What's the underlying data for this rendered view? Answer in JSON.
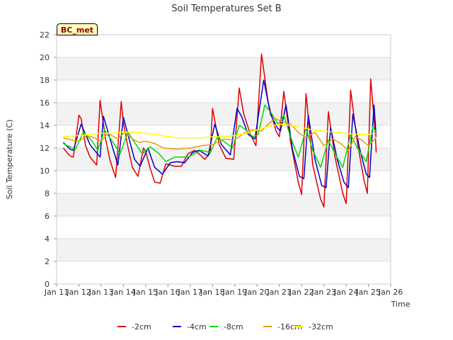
{
  "chart_data": {
    "type": "line",
    "title": "Soil Temperatures Set B",
    "xlabel": "Time",
    "ylabel": "Soil Temperature (C)",
    "ylim": [
      0,
      22
    ],
    "yticks": [
      0,
      2,
      4,
      6,
      8,
      10,
      12,
      14,
      16,
      18,
      20,
      22
    ],
    "xlim": [
      11,
      26
    ],
    "xticks": [
      11,
      12,
      13,
      14,
      15,
      16,
      17,
      18,
      19,
      20,
      21,
      22,
      23,
      24,
      25,
      26
    ],
    "xtick_labels": [
      "Jan 11",
      "Jan 12",
      "Jan 13",
      "Jan 14",
      "Jan 15",
      "Jan 16",
      "Jan 17",
      "Jan 18",
      "Jan 19",
      "Jan 20",
      "Jan 21",
      "Jan 22",
      "Jan 23",
      "Jan 24",
      "Jan 25",
      "Jan 26"
    ],
    "grid_bands": true,
    "legend_position": "bottom-center",
    "annotation": "BC_met",
    "series": [
      {
        "name": "-2cm",
        "color": "#dd0000",
        "x": [
          11.3,
          11.6,
          11.75,
          12.0,
          12.1,
          12.3,
          12.5,
          12.8,
          12.95,
          13.2,
          13.4,
          13.65,
          13.9,
          14.0,
          14.2,
          14.4,
          14.65,
          14.9,
          15.0,
          15.2,
          15.4,
          15.65,
          15.9,
          16.1,
          16.3,
          16.6,
          16.9,
          17.2,
          17.5,
          17.65,
          17.9,
          18.0,
          18.3,
          18.6,
          18.95,
          19.2,
          19.4,
          19.7,
          19.95,
          20.2,
          20.5,
          20.85,
          21.0,
          21.2,
          21.5,
          21.85,
          22.0,
          22.2,
          22.5,
          22.85,
          23.0,
          23.2,
          23.5,
          23.85,
          24.0,
          24.2,
          24.5,
          24.8,
          24.95,
          25.1,
          25.3,
          25.35
        ],
        "values": [
          12.0,
          11.3,
          11.2,
          14.9,
          14.6,
          12.2,
          11.2,
          10.5,
          16.2,
          12.8,
          10.9,
          9.4,
          16.1,
          14.2,
          12.1,
          10.3,
          9.5,
          12.0,
          11.7,
          10.2,
          9.0,
          8.9,
          10.6,
          10.5,
          10.4,
          10.4,
          11.5,
          11.8,
          11.3,
          11.0,
          11.6,
          15.5,
          12.3,
          11.1,
          11.0,
          17.3,
          15.0,
          13.2,
          12.2,
          20.3,
          16.0,
          13.5,
          13.0,
          17.0,
          12.6,
          9.0,
          7.9,
          16.8,
          10.5,
          7.5,
          6.8,
          15.2,
          11.2,
          8.0,
          7.1,
          17.1,
          12.5,
          9.2,
          8.0,
          18.1,
          13.5,
          11.6
        ]
      },
      {
        "name": "-4cm",
        "color": "#0000cc",
        "x": [
          11.3,
          11.6,
          11.75,
          12.1,
          12.5,
          12.95,
          13.1,
          13.4,
          13.75,
          14.0,
          14.2,
          14.5,
          14.75,
          15.1,
          15.4,
          15.75,
          16.1,
          16.4,
          16.75,
          17.1,
          17.4,
          17.8,
          18.1,
          18.4,
          18.8,
          19.1,
          19.3,
          19.6,
          19.9,
          20.3,
          20.6,
          20.9,
          21.05,
          21.3,
          21.6,
          21.9,
          22.1,
          22.3,
          22.6,
          22.9,
          23.1,
          23.3,
          23.6,
          23.9,
          24.1,
          24.3,
          24.6,
          24.9,
          25.05,
          25.25,
          25.35
        ],
        "values": [
          12.5,
          11.9,
          11.8,
          14.1,
          12.3,
          11.2,
          14.8,
          12.8,
          10.5,
          14.7,
          13.2,
          11.0,
          10.4,
          12.0,
          10.3,
          9.7,
          10.7,
          10.8,
          10.7,
          11.6,
          11.8,
          11.3,
          14.1,
          12.3,
          11.4,
          15.5,
          14.8,
          13.2,
          12.8,
          18.0,
          15.0,
          13.8,
          13.5,
          15.8,
          11.8,
          9.5,
          9.3,
          14.9,
          11.0,
          8.7,
          8.5,
          13.8,
          11.0,
          9.0,
          8.5,
          15.0,
          12.0,
          9.7,
          9.4,
          15.8,
          13.0
        ]
      },
      {
        "name": "-8cm",
        "color": "#00dd00",
        "x": [
          11.3,
          11.6,
          11.85,
          12.2,
          12.6,
          12.85,
          13.15,
          13.5,
          13.85,
          14.2,
          14.6,
          14.85,
          15.2,
          15.6,
          15.9,
          16.3,
          16.9,
          17.5,
          17.9,
          18.2,
          18.5,
          18.9,
          19.2,
          19.5,
          19.8,
          20.05,
          20.35,
          20.6,
          20.95,
          21.2,
          21.5,
          21.85,
          22.2,
          22.5,
          22.85,
          23.2,
          23.5,
          23.85,
          24.2,
          24.5,
          24.9,
          25.2,
          25.35
        ],
        "values": [
          12.4,
          12.1,
          11.9,
          13.4,
          12.6,
          11.8,
          13.6,
          12.6,
          11.5,
          13.4,
          12.2,
          11.5,
          12.1,
          11.5,
          10.8,
          11.2,
          11.2,
          11.8,
          11.6,
          12.9,
          12.6,
          12.0,
          14.0,
          13.6,
          13.0,
          13.2,
          15.8,
          15.2,
          14.1,
          14.9,
          13.0,
          11.2,
          13.7,
          11.8,
          10.3,
          12.7,
          11.5,
          10.3,
          13.2,
          12.0,
          10.8,
          13.9,
          13.4
        ]
      },
      {
        "name": "-16cm",
        "color": "#ee9900",
        "x": [
          11.3,
          11.7,
          12.0,
          12.35,
          12.7,
          13.0,
          13.3,
          13.75,
          14.05,
          14.4,
          14.7,
          15.0,
          15.4,
          15.8,
          16.4,
          17.0,
          17.5,
          18.0,
          18.5,
          19.0,
          19.4,
          19.8,
          20.2,
          20.5,
          20.8,
          21.2,
          21.5,
          21.9,
          22.2,
          22.6,
          23.0,
          23.4,
          23.75,
          24.1,
          24.4,
          24.7,
          25.0,
          25.3,
          25.35
        ],
        "values": [
          12.9,
          12.7,
          12.6,
          13.1,
          12.9,
          12.6,
          13.3,
          12.8,
          13.4,
          12.8,
          12.5,
          12.6,
          12.4,
          12.0,
          11.9,
          12.0,
          12.2,
          12.3,
          12.8,
          12.7,
          13.3,
          13.6,
          13.5,
          14.1,
          14.6,
          14.3,
          14.1,
          13.3,
          12.9,
          13.4,
          12.2,
          12.8,
          12.4,
          11.8,
          13.0,
          12.7,
          12.2,
          12.8,
          13.2
        ]
      },
      {
        "name": "-32cm",
        "color": "#ffff00",
        "x": [
          11.3,
          12.0,
          12.5,
          13.0,
          13.5,
          14.0,
          14.5,
          15.0,
          15.5,
          16.0,
          16.5,
          17.0,
          17.5,
          18.0,
          18.5,
          19.0,
          19.5,
          20.0,
          20.5,
          21.0,
          21.5,
          22.0,
          22.5,
          23.0,
          23.5,
          24.0,
          24.5,
          25.0,
          25.35
        ],
        "values": [
          13.0,
          13.1,
          13.2,
          13.3,
          13.3,
          13.4,
          13.4,
          13.3,
          13.2,
          13.0,
          12.9,
          12.9,
          12.9,
          13.0,
          13.0,
          13.1,
          13.3,
          13.6,
          13.9,
          14.1,
          14.0,
          13.8,
          13.6,
          13.5,
          13.4,
          13.3,
          13.2,
          13.2,
          13.3
        ]
      }
    ]
  }
}
